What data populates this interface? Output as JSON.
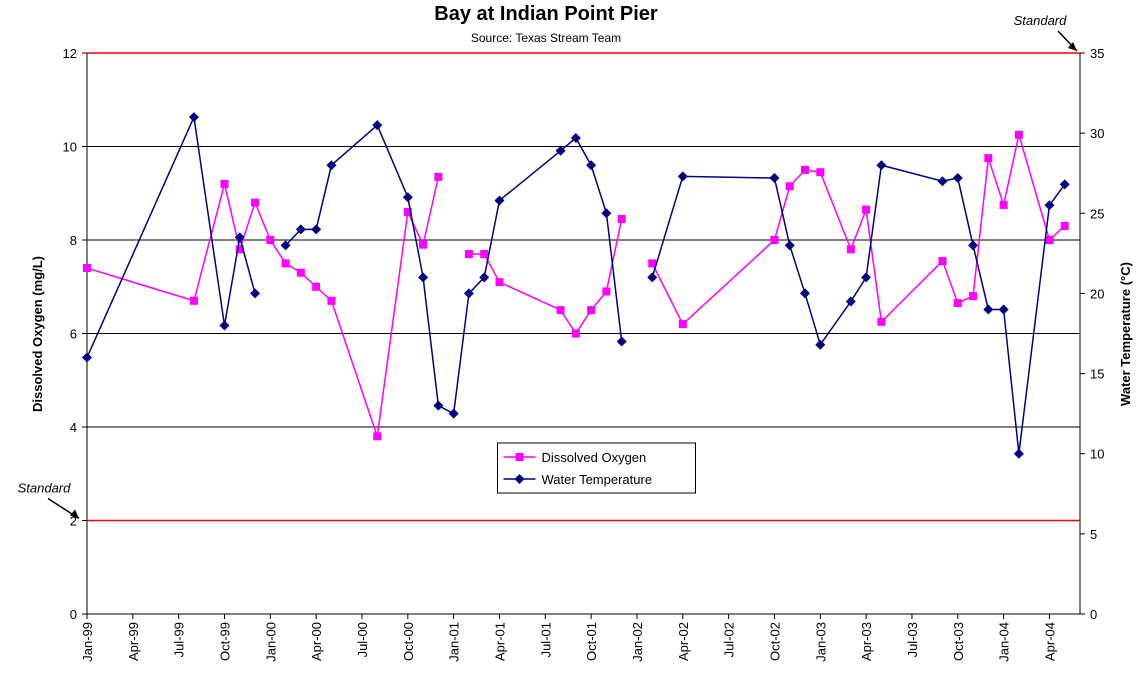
{
  "chart_data": {
    "type": "line",
    "title": "Bay at Indian Point Pier",
    "subtitle": "Source:  Texas Stream Team",
    "y_label": "Dissolved Oxygen (mg/L)",
    "y2_label": "Water Temperature (°C)",
    "x": [
      "1999-01",
      "1999-08",
      "1999-10",
      "1999-11",
      "1999-12",
      "2000-01",
      "2000-02",
      "2000-03",
      "2000-04",
      "2000-05",
      "2000-08",
      "2000-10",
      "2000-11",
      "2000-12",
      "2001-01",
      "2001-02",
      "2001-03",
      "2001-04",
      "2001-08",
      "2001-09",
      "2001-10",
      "2001-11",
      "2001-12",
      "2002-01",
      "2002-02",
      "2002-04",
      "2002-10",
      "2002-11",
      "2002-12",
      "2003-01",
      "2003-03",
      "2003-04",
      "2003-05",
      "2003-09",
      "2003-10",
      "2003-11",
      "2003-12",
      "2004-01",
      "2004-02",
      "2004-04",
      "2004-05"
    ],
    "series": [
      {
        "name": "Dissolved Oxygen",
        "color": "#ff00ff",
        "marker": "square",
        "values": [
          7.4,
          6.7,
          9.2,
          7.8,
          8.8,
          8.0,
          7.5,
          7.3,
          7.0,
          6.7,
          3.8,
          8.6,
          7.9,
          9.35,
          null,
          7.7,
          7.7,
          7.1,
          6.5,
          6.0,
          6.5,
          6.9,
          8.45,
          null,
          7.5,
          6.2,
          8.0,
          9.15,
          9.5,
          9.45,
          7.8,
          8.65,
          6.25,
          7.55,
          6.65,
          6.8,
          9.75,
          8.75,
          10.25,
          8.0,
          8.3
        ]
      },
      {
        "name": "Water Temperature",
        "color": "#000080",
        "marker": "diamond",
        "axis": "y2",
        "values": [
          16,
          31,
          18,
          23.5,
          20,
          null,
          23,
          24,
          24,
          28,
          30.5,
          26,
          21,
          13,
          12.5,
          20,
          21,
          25.8,
          28.9,
          29.7,
          28,
          25,
          17,
          null,
          21,
          27.3,
          27.2,
          23,
          20,
          16.8,
          19.5,
          21,
          28,
          27,
          27.2,
          23,
          19,
          19,
          10,
          25.5,
          26.8
        ]
      }
    ],
    "xlim": [
      "1999-01",
      "2004-06"
    ],
    "xticks": [
      {
        "value": "1999-01",
        "label": "Jan-99"
      },
      {
        "value": "1999-04",
        "label": "Apr-99"
      },
      {
        "value": "1999-07",
        "label": "Jul-99"
      },
      {
        "value": "1999-10",
        "label": "Oct-99"
      },
      {
        "value": "2000-01",
        "label": "Jan-00"
      },
      {
        "value": "2000-04",
        "label": "Apr-00"
      },
      {
        "value": "2000-07",
        "label": "Jul-00"
      },
      {
        "value": "2000-10",
        "label": "Oct-00"
      },
      {
        "value": "2001-01",
        "label": "Jan-01"
      },
      {
        "value": "2001-04",
        "label": "Apr-01"
      },
      {
        "value": "2001-07",
        "label": "Jul-01"
      },
      {
        "value": "2001-10",
        "label": "Oct-01"
      },
      {
        "value": "2002-01",
        "label": "Jan-02"
      },
      {
        "value": "2002-04",
        "label": "Apr-02"
      },
      {
        "value": "2002-07",
        "label": "Jul-02"
      },
      {
        "value": "2002-10",
        "label": "Oct-02"
      },
      {
        "value": "2003-01",
        "label": "Jan-03"
      },
      {
        "value": "2003-04",
        "label": "Apr-03"
      },
      {
        "value": "2003-07",
        "label": "Jul-03"
      },
      {
        "value": "2003-10",
        "label": "Oct-03"
      },
      {
        "value": "2004-01",
        "label": "Jan-04"
      },
      {
        "value": "2004-04",
        "label": "Apr-04"
      }
    ],
    "ylim": [
      0,
      12
    ],
    "yticks": [
      0,
      2,
      4,
      6,
      8,
      10,
      12
    ],
    "y2lim": [
      0,
      35
    ],
    "y2ticks": [
      0,
      5,
      10,
      15,
      20,
      25,
      30,
      35
    ],
    "grid": true,
    "reference_lines": [
      {
        "label": "Standard",
        "value": 2,
        "color": "#ff0000"
      },
      {
        "label": "Standard",
        "value": 12,
        "color": "#ff0000"
      }
    ],
    "legend": "lower center"
  }
}
